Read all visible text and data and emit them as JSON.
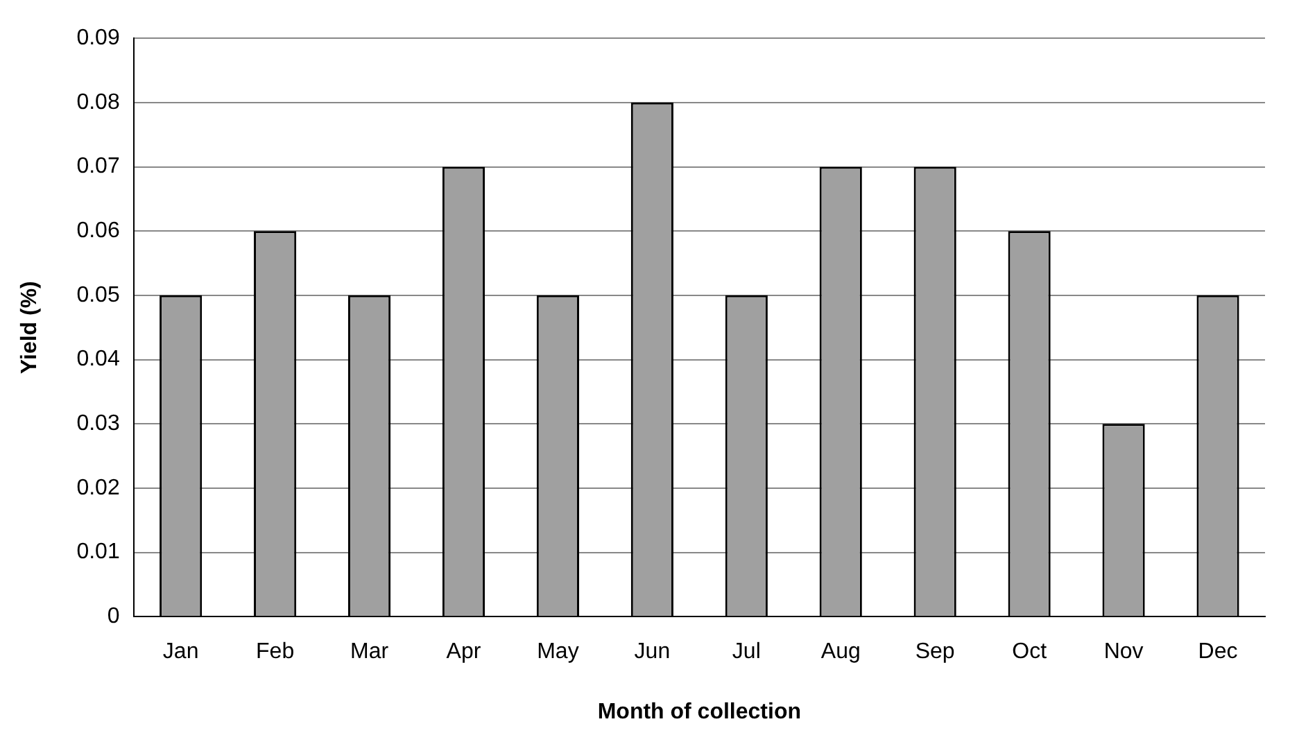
{
  "chart_data": {
    "type": "bar",
    "xlabel": "Month of collection",
    "ylabel": "Yield (%)",
    "categories": [
      "Jan",
      "Feb",
      "Mar",
      "Apr",
      "May",
      "Jun",
      "Jul",
      "Aug",
      "Sep",
      "Oct",
      "Nov",
      "Dec"
    ],
    "values": [
      0.05,
      0.06,
      0.05,
      0.07,
      0.05,
      0.08,
      0.05,
      0.07,
      0.07,
      0.06,
      0.03,
      0.05
    ],
    "color": "#a0a0a0",
    "ylim": [
      0,
      0.09
    ],
    "yticks": [
      0,
      0.01,
      0.02,
      0.03,
      0.04,
      0.05,
      0.06,
      0.07,
      0.08,
      0.09
    ],
    "grid": "y",
    "legend": false
  }
}
